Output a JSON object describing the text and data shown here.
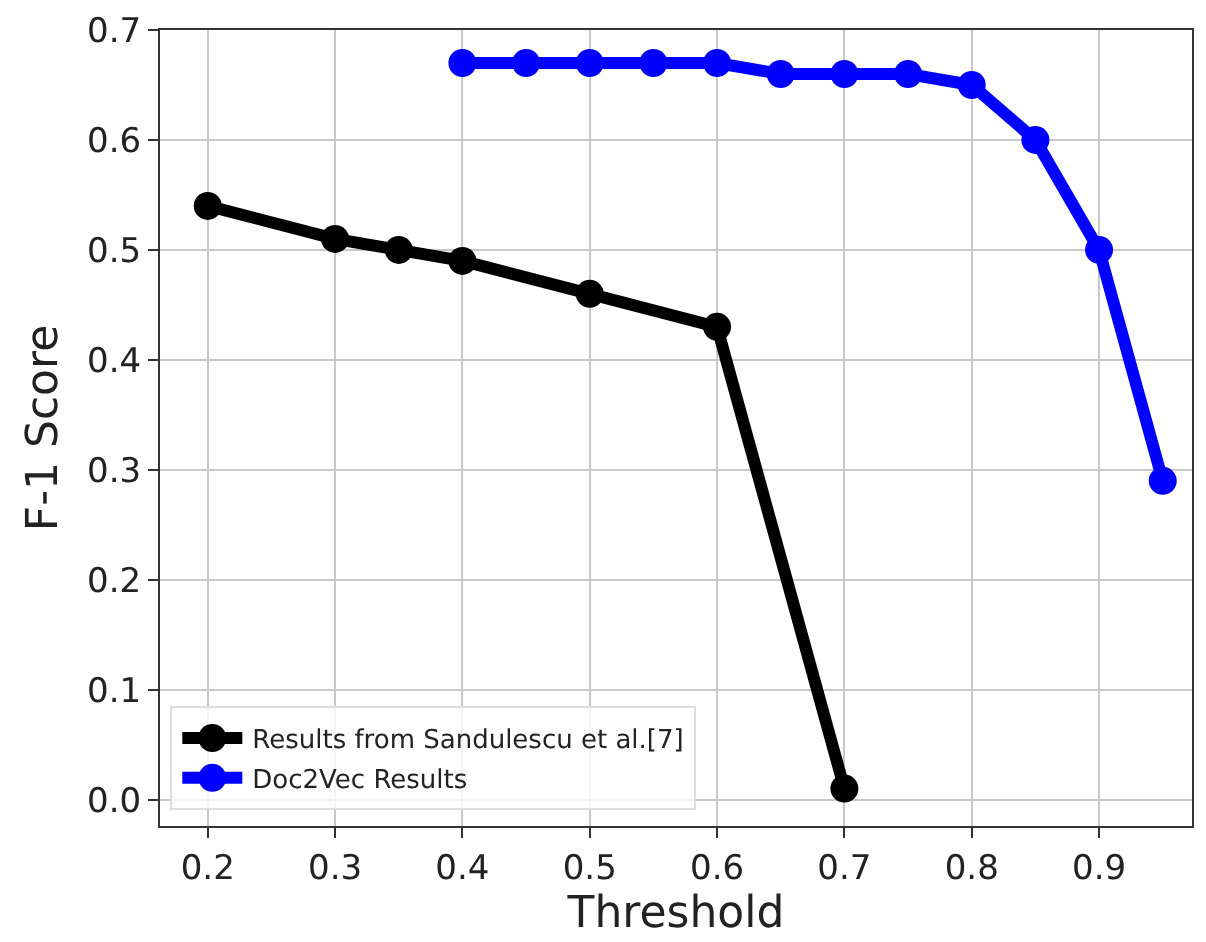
{
  "chart_data": {
    "type": "line",
    "xlabel": "Threshold",
    "ylabel": "F-1 Score",
    "xlim": [
      0.1625,
      0.973
    ],
    "xticks": [
      0.2,
      0.3,
      0.4,
      0.5,
      0.6,
      0.7,
      0.8,
      0.9
    ],
    "ylim": [
      -0.024,
      0.7
    ],
    "yticks": [
      {
        "value": 0,
        "label": "0.0"
      },
      0.1,
      0.2,
      0.3,
      0.4,
      0.5,
      0.6,
      0.7
    ],
    "grid": true,
    "legend": "bottom left",
    "marker": "circle",
    "line_style": "solid",
    "series": [
      {
        "name": "Results from Sandulescu et al.[7]",
        "color": "#000000",
        "x": [
          0.2,
          0.3,
          0.35,
          0.4,
          0.5,
          0.6,
          0.7
        ],
        "values": [
          0.54,
          0.51,
          0.5,
          0.49,
          0.46,
          0.43,
          0.01
        ]
      },
      {
        "name": "Doc2Vec Results",
        "color": "#0000ff",
        "x": [
          0.4,
          0.45,
          0.5,
          0.55,
          0.6,
          0.65,
          0.7,
          0.75,
          0.8,
          0.85,
          0.9,
          0.95
        ],
        "values": [
          0.67,
          0.67,
          0.67,
          0.67,
          0.67,
          0.66,
          0.66,
          0.66,
          0.65,
          0.6,
          0.5,
          0.29
        ]
      }
    ]
  }
}
